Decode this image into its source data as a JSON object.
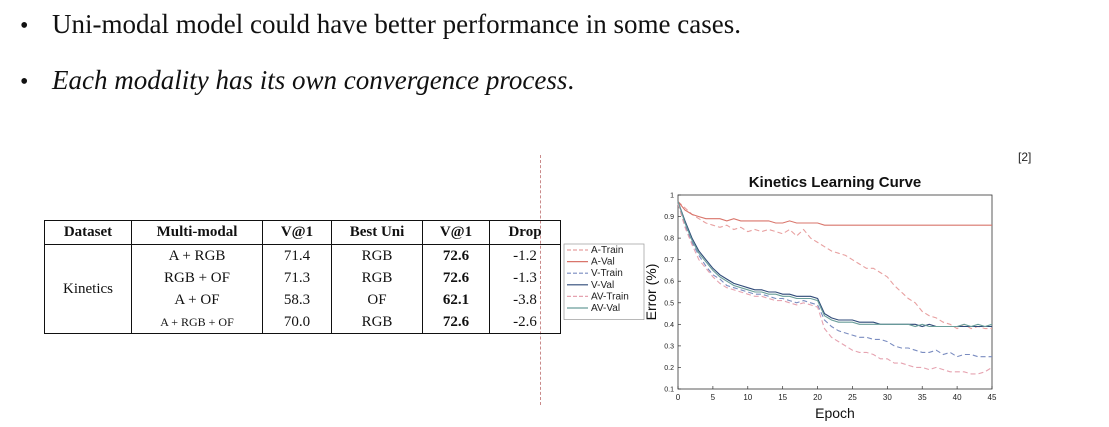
{
  "bullets": [
    {
      "text": "Uni-modal model could have better performance in some cases.",
      "italic": false
    },
    {
      "text": "Each modality has its own convergence process",
      "suffix": ".",
      "italic": true
    }
  ],
  "bullet_glyph": "•",
  "reference": "[2]",
  "table": {
    "headers": [
      "Dataset",
      "Multi-modal",
      "V@1",
      "Best Uni",
      "V@1",
      "Drop"
    ],
    "dataset": "Kinetics",
    "rows": [
      {
        "multi": "A + RGB",
        "v1": "71.4",
        "uni": "RGB",
        "v2": "72.6",
        "drop": "-1.2"
      },
      {
        "multi": "RGB + OF",
        "v1": "71.3",
        "uni": "RGB",
        "v2": "72.6",
        "drop": "-1.3"
      },
      {
        "multi": "A + OF",
        "v1": "58.3",
        "uni": "OF",
        "v2": "62.1",
        "drop": "-3.8"
      },
      {
        "multi": "A + RGB + OF",
        "v1": "70.0",
        "uni": "RGB",
        "v2": "72.6",
        "drop": "-2.6"
      }
    ]
  },
  "chart_data": {
    "type": "line",
    "title": "Kinetics Learning Curve",
    "xlabel": "Epoch",
    "ylabel": "Error (%)",
    "xlim": [
      0,
      45
    ],
    "ylim": [
      0.1,
      1
    ],
    "xticks": [
      0,
      5,
      10,
      15,
      20,
      25,
      30,
      35,
      40,
      45
    ],
    "yticks": [
      0.1,
      0.2,
      0.3,
      0.4,
      0.5,
      0.6,
      0.7,
      0.8,
      0.9,
      1
    ],
    "legend_position": "left",
    "series": [
      {
        "name": "A-Train",
        "color": "#e8a0a0",
        "dashed": true,
        "x": [
          0,
          1,
          2,
          3,
          4,
          5,
          6,
          7,
          8,
          9,
          10,
          11,
          12,
          13,
          14,
          15,
          16,
          17,
          18,
          19,
          20,
          21,
          22,
          23,
          24,
          25,
          26,
          27,
          28,
          29,
          30,
          31,
          32,
          33,
          34,
          35,
          36,
          37,
          38,
          39,
          40,
          41,
          42,
          43,
          44,
          45
        ],
        "y": [
          0.97,
          0.94,
          0.91,
          0.89,
          0.87,
          0.86,
          0.85,
          0.86,
          0.84,
          0.85,
          0.83,
          0.84,
          0.83,
          0.84,
          0.83,
          0.82,
          0.84,
          0.81,
          0.84,
          0.8,
          0.78,
          0.76,
          0.74,
          0.73,
          0.72,
          0.7,
          0.68,
          0.66,
          0.66,
          0.64,
          0.62,
          0.58,
          0.55,
          0.52,
          0.5,
          0.46,
          0.44,
          0.43,
          0.41,
          0.4,
          0.38,
          0.4,
          0.38,
          0.39,
          0.38,
          0.38
        ]
      },
      {
        "name": "A-Val",
        "color": "#d9756b",
        "dashed": false,
        "x": [
          0,
          1,
          2,
          3,
          4,
          5,
          6,
          7,
          8,
          9,
          10,
          11,
          12,
          13,
          14,
          15,
          16,
          17,
          18,
          19,
          20,
          21,
          22,
          23,
          24,
          25,
          26,
          27,
          28,
          29,
          30,
          31,
          32,
          33,
          34,
          35,
          36,
          37,
          38,
          39,
          40,
          41,
          42,
          43,
          44,
          45
        ],
        "y": [
          0.97,
          0.93,
          0.91,
          0.9,
          0.89,
          0.89,
          0.89,
          0.88,
          0.89,
          0.88,
          0.88,
          0.88,
          0.88,
          0.88,
          0.87,
          0.87,
          0.88,
          0.87,
          0.87,
          0.87,
          0.87,
          0.86,
          0.86,
          0.86,
          0.86,
          0.86,
          0.86,
          0.86,
          0.86,
          0.86,
          0.86,
          0.86,
          0.86,
          0.86,
          0.86,
          0.86,
          0.86,
          0.86,
          0.86,
          0.86,
          0.86,
          0.86,
          0.86,
          0.86,
          0.86,
          0.86
        ]
      },
      {
        "name": "V-Train",
        "color": "#7a8cc0",
        "dashed": true,
        "x": [
          0,
          1,
          2,
          3,
          4,
          5,
          6,
          7,
          8,
          9,
          10,
          11,
          12,
          13,
          14,
          15,
          16,
          17,
          18,
          19,
          20,
          21,
          22,
          23,
          24,
          25,
          26,
          27,
          28,
          29,
          30,
          31,
          32,
          33,
          34,
          35,
          36,
          37,
          38,
          39,
          40,
          41,
          42,
          43,
          44,
          45
        ],
        "y": [
          0.96,
          0.86,
          0.78,
          0.72,
          0.67,
          0.63,
          0.61,
          0.58,
          0.57,
          0.56,
          0.55,
          0.54,
          0.54,
          0.53,
          0.52,
          0.52,
          0.51,
          0.5,
          0.51,
          0.5,
          0.49,
          0.42,
          0.39,
          0.37,
          0.36,
          0.35,
          0.34,
          0.34,
          0.33,
          0.33,
          0.32,
          0.3,
          0.29,
          0.29,
          0.28,
          0.27,
          0.27,
          0.28,
          0.26,
          0.27,
          0.25,
          0.26,
          0.26,
          0.25,
          0.25,
          0.25
        ]
      },
      {
        "name": "V-Val",
        "color": "#2f4a78",
        "dashed": false,
        "x": [
          0,
          1,
          2,
          3,
          4,
          5,
          6,
          7,
          8,
          9,
          10,
          11,
          12,
          13,
          14,
          15,
          16,
          17,
          18,
          19,
          20,
          21,
          22,
          23,
          24,
          25,
          26,
          27,
          28,
          29,
          30,
          31,
          32,
          33,
          34,
          35,
          36,
          37,
          38,
          39,
          40,
          41,
          42,
          43,
          44,
          45
        ],
        "y": [
          0.97,
          0.88,
          0.8,
          0.74,
          0.7,
          0.66,
          0.63,
          0.61,
          0.59,
          0.58,
          0.57,
          0.56,
          0.56,
          0.55,
          0.55,
          0.54,
          0.54,
          0.53,
          0.53,
          0.53,
          0.52,
          0.45,
          0.43,
          0.42,
          0.42,
          0.42,
          0.41,
          0.41,
          0.41,
          0.4,
          0.4,
          0.4,
          0.4,
          0.4,
          0.4,
          0.39,
          0.4,
          0.39,
          0.39,
          0.39,
          0.39,
          0.39,
          0.39,
          0.39,
          0.39,
          0.39
        ]
      },
      {
        "name": "AV-Train",
        "color": "#e6a3b0",
        "dashed": true,
        "x": [
          0,
          1,
          2,
          3,
          4,
          5,
          6,
          7,
          8,
          9,
          10,
          11,
          12,
          13,
          14,
          15,
          16,
          17,
          18,
          19,
          20,
          21,
          22,
          23,
          24,
          25,
          26,
          27,
          28,
          29,
          30,
          31,
          32,
          33,
          34,
          35,
          36,
          37,
          38,
          39,
          40,
          41,
          42,
          43,
          44,
          45
        ],
        "y": [
          0.96,
          0.85,
          0.77,
          0.7,
          0.66,
          0.62,
          0.59,
          0.57,
          0.56,
          0.55,
          0.54,
          0.53,
          0.53,
          0.52,
          0.51,
          0.51,
          0.5,
          0.49,
          0.5,
          0.49,
          0.48,
          0.38,
          0.34,
          0.32,
          0.3,
          0.28,
          0.27,
          0.27,
          0.26,
          0.24,
          0.24,
          0.22,
          0.22,
          0.21,
          0.2,
          0.2,
          0.19,
          0.2,
          0.19,
          0.18,
          0.18,
          0.18,
          0.17,
          0.17,
          0.18,
          0.2
        ]
      },
      {
        "name": "AV-Val",
        "color": "#6a9e9a",
        "dashed": false,
        "x": [
          0,
          1,
          2,
          3,
          4,
          5,
          6,
          7,
          8,
          9,
          10,
          11,
          12,
          13,
          14,
          15,
          16,
          17,
          18,
          19,
          20,
          21,
          22,
          23,
          24,
          25,
          26,
          27,
          28,
          29,
          30,
          31,
          32,
          33,
          34,
          35,
          36,
          37,
          38,
          39,
          40,
          41,
          42,
          43,
          44,
          45
        ],
        "y": [
          0.97,
          0.87,
          0.79,
          0.73,
          0.69,
          0.65,
          0.62,
          0.6,
          0.58,
          0.57,
          0.56,
          0.55,
          0.55,
          0.54,
          0.54,
          0.53,
          0.53,
          0.52,
          0.52,
          0.52,
          0.51,
          0.44,
          0.42,
          0.41,
          0.41,
          0.41,
          0.4,
          0.4,
          0.4,
          0.4,
          0.4,
          0.4,
          0.4,
          0.4,
          0.39,
          0.4,
          0.39,
          0.39,
          0.39,
          0.39,
          0.39,
          0.4,
          0.39,
          0.4,
          0.39,
          0.4
        ]
      }
    ]
  }
}
